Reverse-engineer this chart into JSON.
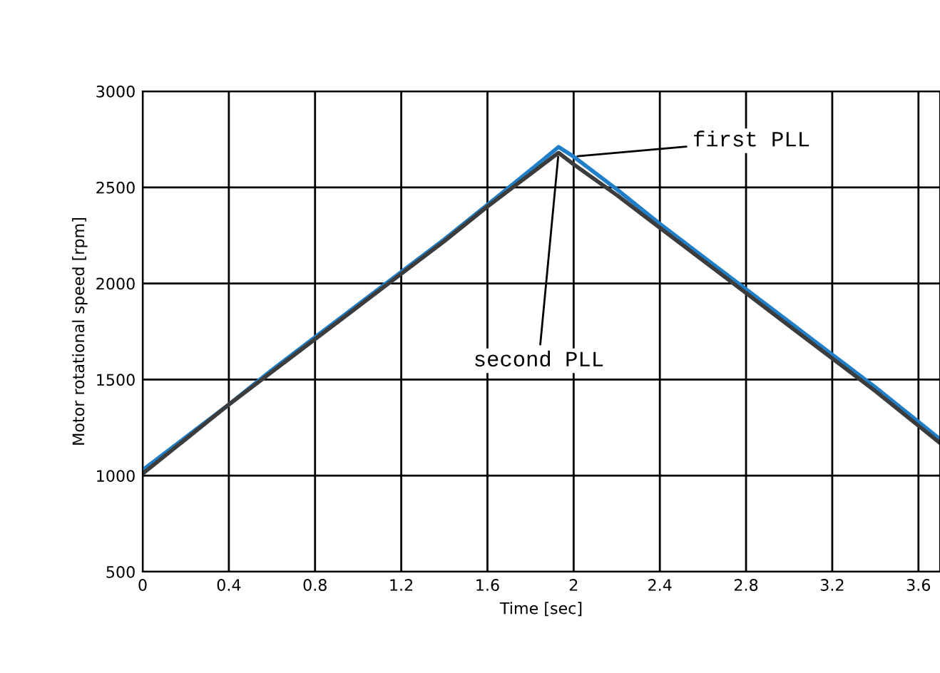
{
  "chart_data": {
    "type": "line",
    "xlabel": "Time [sec]",
    "ylabel": "Motor rotational speed [rpm]",
    "xlim": [
      0,
      3.7
    ],
    "xticks": [
      0,
      0.4,
      0.8,
      1.2,
      1.6,
      2,
      2.4,
      2.8,
      3.2,
      3.6
    ],
    "ylim": [
      500,
      3000
    ],
    "yticks": [
      500,
      1000,
      1500,
      2000,
      2500,
      3000
    ],
    "grid": true,
    "legend": false,
    "marker": "none",
    "line_style": "solid",
    "series": [
      {
        "color": "#1f7fc8",
        "x": [
          0,
          0.2,
          0.4,
          0.6,
          0.8,
          1.0,
          1.2,
          1.4,
          1.6,
          1.8,
          1.93,
          2.0,
          2.2,
          2.4,
          2.6,
          2.8,
          3.0,
          3.2,
          3.4,
          3.6,
          3.7
        ],
        "values": [
          1030,
          1200,
          1370,
          1550,
          1720,
          1890,
          2060,
          2230,
          2410,
          2590,
          2710,
          2660,
          2490,
          2310,
          2140,
          1970,
          1800,
          1630,
          1460,
          1280,
          1190
        ]
      },
      {
        "color": "#3c3c3c",
        "x": [
          0,
          0.2,
          0.4,
          0.6,
          0.8,
          1.0,
          1.2,
          1.4,
          1.6,
          1.8,
          1.93,
          2.0,
          2.2,
          2.4,
          2.6,
          2.8,
          3.0,
          3.2,
          3.4,
          3.6,
          3.7
        ],
        "values": [
          1010,
          1190,
          1370,
          1540,
          1710,
          1880,
          2050,
          2220,
          2400,
          2570,
          2680,
          2620,
          2460,
          2290,
          2120,
          1950,
          1780,
          1610,
          1440,
          1260,
          1170
        ]
      }
    ],
    "annotations": [
      {
        "text": "first PLL",
        "x": 2.0,
        "y": 2660
      },
      {
        "text": "second PLL",
        "x": 1.93,
        "y": 2680
      }
    ]
  }
}
